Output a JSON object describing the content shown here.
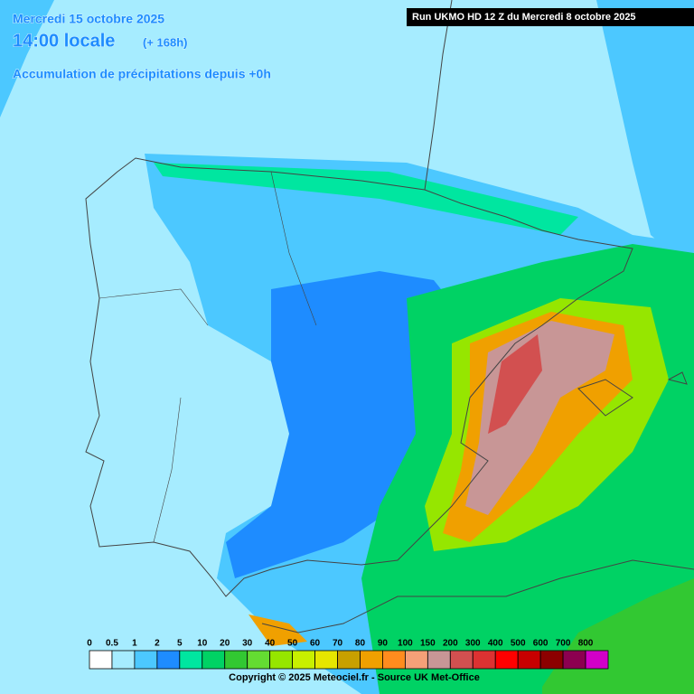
{
  "header": {
    "date": "Mercredi 15 octobre 2025",
    "time": "14:00 locale",
    "lead": "(+ 168h)",
    "subtitle": "Accumulation de précipitations depuis +0h"
  },
  "run": "Run UKMO HD 12 Z du Mercredi 8 octobre 2025",
  "legend": {
    "labels": [
      "0",
      "0.5",
      "1",
      "2",
      "5",
      "10",
      "20",
      "30",
      "40",
      "50",
      "60",
      "70",
      "80",
      "90",
      "100",
      "150",
      "200",
      "300",
      "400",
      "500",
      "600",
      "700",
      "800"
    ],
    "colors": [
      "#ffffff",
      "#a6ecff",
      "#4cc8ff",
      "#1e8cff",
      "#00e6a0",
      "#00d264",
      "#32c832",
      "#64dc32",
      "#96e600",
      "#c8f000",
      "#e6e600",
      "#c8a000",
      "#f0a000",
      "#ff8c1e",
      "#f5a078",
      "#c89696",
      "#d25050",
      "#dc3232",
      "#ff0000",
      "#c80000",
      "#8c0000",
      "#8c0050",
      "#d200c8"
    ]
  },
  "copyright": "Copyright © 2025 Meteociel.fr - Source UK Met-Office"
}
